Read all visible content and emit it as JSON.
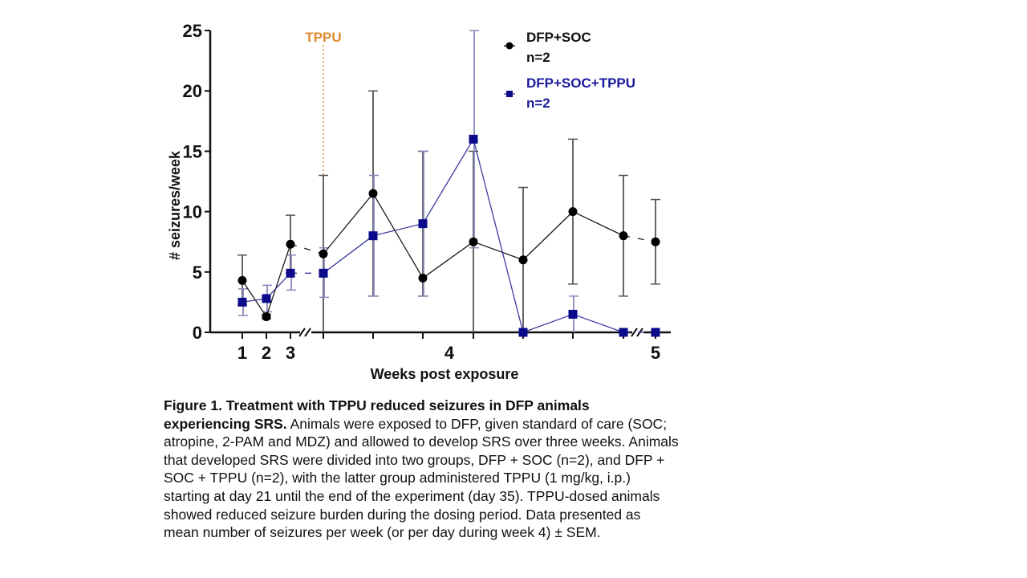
{
  "chart_data": {
    "type": "line",
    "title": "",
    "xlabel": "Weeks post exposure",
    "ylabel": "# seizures/week",
    "ylim": [
      0,
      25
    ],
    "yticks": [
      0,
      5,
      10,
      15,
      20,
      25
    ],
    "grid": false,
    "legend_position": "top-right",
    "x_tick_labels": [
      "1",
      "2",
      "3",
      "4",
      "5"
    ],
    "x_points": [
      "W1",
      "W2",
      "W3",
      "W4-d1",
      "W4-d2",
      "W4-d3",
      "W4-d4",
      "W4-d5",
      "W4-d6",
      "W4-d7",
      "W5"
    ],
    "annotation": {
      "text": "TPPU",
      "at_point": "W4-d1",
      "color": "#e08a2c"
    },
    "series": [
      {
        "name": "DFP+SOC",
        "n_label": "n=2",
        "color": "#000000",
        "marker": "circle",
        "values": [
          4.3,
          1.3,
          7.3,
          6.5,
          11.5,
          4.5,
          7.5,
          6.0,
          10.0,
          8.0,
          7.5
        ],
        "err_upper": [
          6.4,
          1.5,
          9.7,
          13.0,
          20.0,
          15.0,
          15.0,
          12.0,
          16.0,
          13.0,
          11.0
        ],
        "err_lower": [
          2.3,
          1.1,
          4.9,
          0.0,
          3.0,
          3.0,
          0.0,
          0.0,
          4.0,
          3.0,
          4.0
        ]
      },
      {
        "name": "DFP+SOC+TPPU",
        "n_label": "n=2",
        "color": "#1a1a8c",
        "marker": "square",
        "values": [
          2.5,
          2.8,
          4.9,
          4.9,
          8.0,
          9.0,
          16.0,
          0.0,
          1.5,
          0.0,
          0.0
        ],
        "err_upper": [
          3.6,
          3.9,
          6.4,
          7.0,
          13.0,
          15.0,
          25.0,
          0.0,
          3.0,
          0.0,
          0.0
        ],
        "err_lower": [
          1.4,
          1.7,
          3.5,
          2.9,
          3.0,
          3.0,
          7.0,
          0.0,
          0.0,
          0.0,
          0.0
        ]
      }
    ]
  },
  "caption": {
    "lines": [
      [
        {
          "b": "Figure 1. Treatment with  TPPU reduced seizures in DFP animals"
        }
      ],
      [
        {
          "b": "experiencing SRS."
        },
        {
          "t": " Animals  were exposed to DFP, given standard  of care (SOC;"
        }
      ],
      [
        {
          "t": "atropine, 2-PAM  and MDZ) and allowed to develop SRS over three weeks. Animals"
        }
      ],
      [
        {
          "t": "that developed SRS were divided into two groups,  DFP + SOC (n=2), and DFP +"
        }
      ],
      [
        {
          "t": "SOC + TPPU  (n=2), with the latter group administered TPPU  (1 mg/kg,  i.p.)"
        }
      ],
      [
        {
          "t": "starting at day 21 until the end  of the experiment  (day 35). TPPU-dosed  animals"
        }
      ],
      [
        {
          "t": "showed reduced  seizure  burden  during  the dosing period. Data presented  as"
        }
      ],
      [
        {
          "t": "mean number  of seizures per week (or per day during  week 4) ± SEM."
        }
      ]
    ]
  }
}
